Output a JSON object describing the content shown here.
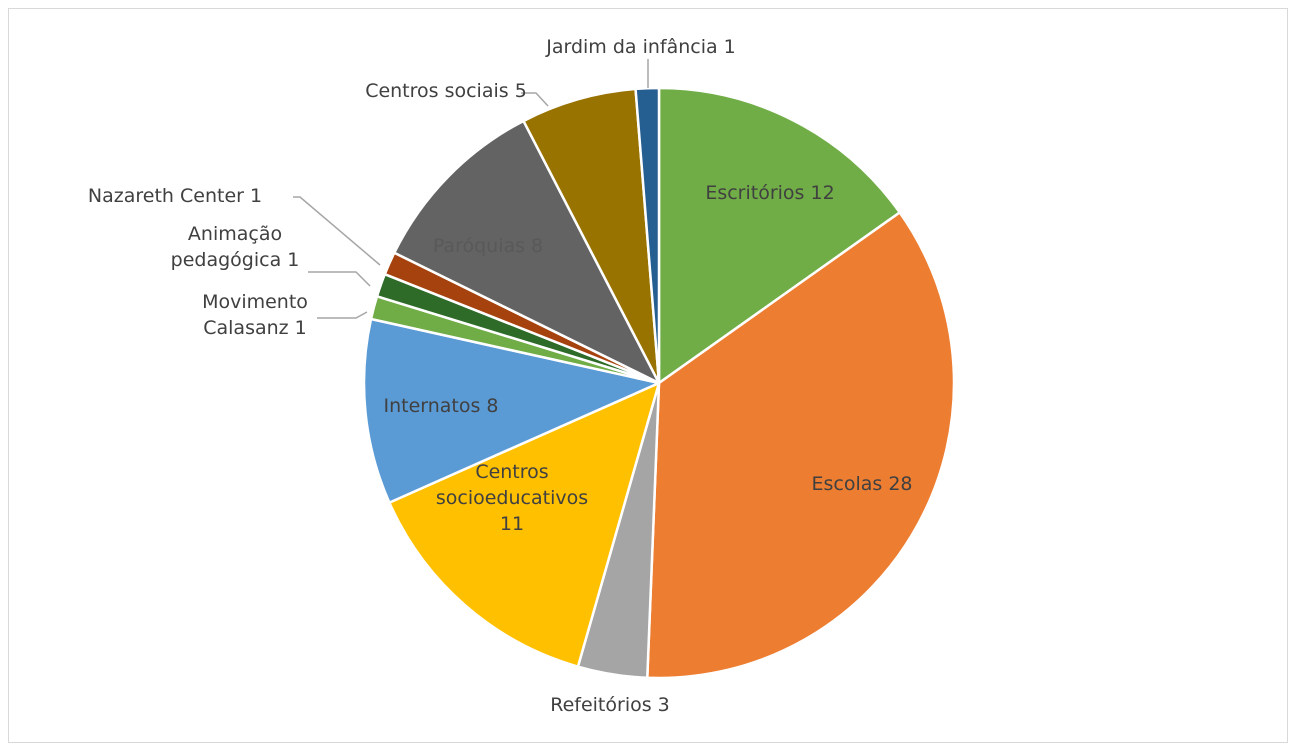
{
  "chart_data": {
    "type": "pie",
    "title": "",
    "series": [
      {
        "name": "",
        "slices": [
          {
            "label": "Escritórios",
            "value": 12,
            "color": "#70AD47",
            "label_lines": [
              "Escritórios 12"
            ]
          },
          {
            "label": "Escolas",
            "value": 28,
            "color": "#ED7D31",
            "label_lines": [
              "Escolas 28"
            ]
          },
          {
            "label": "Refeitórios",
            "value": 3,
            "color": "#A5A5A5",
            "label_lines": [
              "Refeitórios 3"
            ]
          },
          {
            "label": "Centros socioeducativos",
            "value": 11,
            "color": "#FFC000",
            "label_lines": [
              "Centros",
              "socioeducativos",
              "11"
            ]
          },
          {
            "label": "Internatos",
            "value": 8,
            "color": "#5B9BD5",
            "label_lines": [
              "Internatos 8"
            ]
          },
          {
            "label": "Movimento Calasanz",
            "value": 1,
            "color": "#70AD47",
            "label_lines": [
              "Movimento",
              "Calasanz 1"
            ]
          },
          {
            "label": "Animação pedagógica",
            "value": 1,
            "color": "#2E6B28",
            "label_lines": [
              "Animação",
              "pedagógica 1"
            ]
          },
          {
            "label": "Nazareth Center",
            "value": 1,
            "color": "#A5420E",
            "label_lines": [
              "Nazareth Center 1"
            ]
          },
          {
            "label": "Paróquias",
            "value": 8,
            "color": "#636363",
            "label_lines": [
              "Paróquias 8"
            ]
          },
          {
            "label": "Centros sociais",
            "value": 5,
            "color": "#997300",
            "label_lines": [
              "Centros sociais 5"
            ]
          },
          {
            "label": "Jardim da infância",
            "value": 1,
            "color": "#255E91",
            "label_lines": [
              "Jardim da infância 1"
            ]
          }
        ]
      }
    ],
    "start_angle": "12 o'clock",
    "direction": "clockwise",
    "legend": "none",
    "data_labels": "category name and value"
  }
}
